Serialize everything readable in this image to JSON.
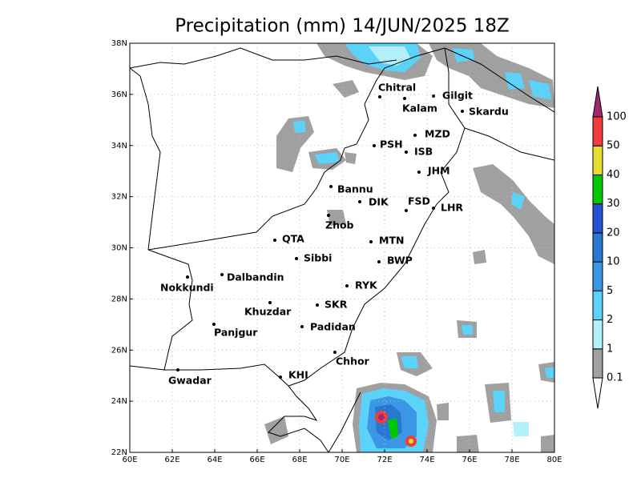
{
  "title": "Precipitation (mm) 14/JUN/2025 18Z",
  "lon_labels": [
    "60E",
    "62E",
    "64E",
    "66E",
    "68E",
    "70E",
    "72E",
    "74E",
    "76E",
    "78E",
    "80E"
  ],
  "lat_labels": [
    "22N",
    "24N",
    "26N",
    "28N",
    "30N",
    "32N",
    "34N",
    "36N",
    "38N"
  ],
  "cities": [
    "Chitral",
    "Kalam",
    "Gilgit",
    "Skardu",
    "MZD",
    "PSH",
    "ISB",
    "JHM",
    "Bannu",
    "DIK",
    "FSD",
    "LHR",
    "Zhob",
    "QTA",
    "MTN",
    "Sibbi",
    "BWP",
    "Dalbandin",
    "Nokkundi",
    "RYK",
    "Khuzdar",
    "SKR",
    "Padidan",
    "Panjgur",
    "Chhor",
    "KHI",
    "Gwadar"
  ],
  "colorbar": {
    "levels": [
      0.1,
      1,
      2,
      5,
      10,
      20,
      30,
      40,
      50,
      100
    ]
  }
}
